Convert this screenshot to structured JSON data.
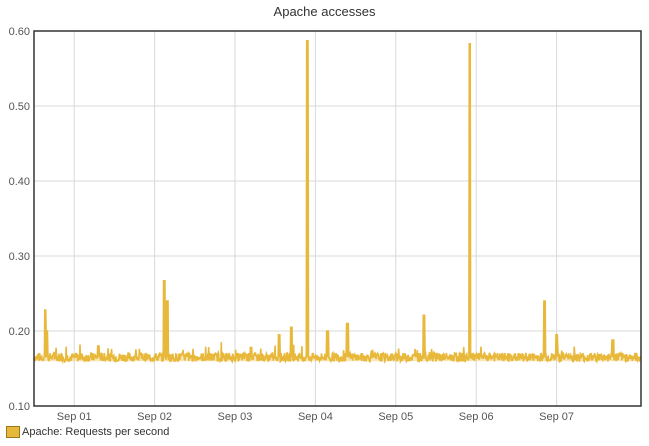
{
  "chart_data": {
    "type": "line",
    "title": "Apache accesses",
    "xlabel": "",
    "ylabel": "",
    "ylim": [
      0.1,
      0.6
    ],
    "yticks": [
      "0.10",
      "0.20",
      "0.30",
      "0.40",
      "0.50",
      "0.60"
    ],
    "xticks": [
      "Sep 01",
      "Sep 02",
      "Sep 03",
      "Sep 04",
      "Sep 05",
      "Sep 06",
      "Sep 07"
    ],
    "xlim": [
      0,
      7.55
    ],
    "grid": true,
    "legend_position": "bottom-left",
    "series": [
      {
        "name": "Apache: Requests per second",
        "color": "#e8b83a",
        "baseline": 0.165,
        "x": [
          0.0,
          0.12,
          0.14,
          0.16,
          0.3,
          0.62,
          0.8,
          1.0,
          1.3,
          1.55,
          1.62,
          1.64,
          1.66,
          1.68,
          1.7,
          1.75,
          1.8,
          2.0,
          2.1,
          2.4,
          2.6,
          2.7,
          2.9,
          3.05,
          3.1,
          3.2,
          3.3,
          3.38,
          3.4,
          3.42,
          3.44,
          3.5,
          3.65,
          3.75,
          3.9,
          4.1,
          4.3,
          4.5,
          4.8,
          4.85,
          4.88,
          5.0,
          5.2,
          5.4,
          5.42,
          5.44,
          5.46,
          5.48,
          5.7,
          5.9,
          6.1,
          6.3,
          6.35,
          6.4,
          6.5,
          6.6,
          6.8,
          7.0,
          7.2,
          7.4,
          7.5,
          7.55
        ],
        "y": [
          0.163,
          0.165,
          0.228,
          0.2,
          0.175,
          0.165,
          0.18,
          0.17,
          0.165,
          0.163,
          0.267,
          0.17,
          0.24,
          0.175,
          0.165,
          0.165,
          0.17,
          0.168,
          0.165,
          0.168,
          0.165,
          0.178,
          0.165,
          0.195,
          0.17,
          0.205,
          0.175,
          0.165,
          0.587,
          0.165,
          0.17,
          0.165,
          0.2,
          0.168,
          0.21,
          0.165,
          0.168,
          0.17,
          0.168,
          0.221,
          0.168,
          0.165,
          0.172,
          0.165,
          0.583,
          0.165,
          0.17,
          0.165,
          0.168,
          0.172,
          0.165,
          0.168,
          0.24,
          0.17,
          0.195,
          0.172,
          0.168,
          0.165,
          0.188,
          0.168,
          0.173,
          0.155
        ]
      }
    ]
  }
}
